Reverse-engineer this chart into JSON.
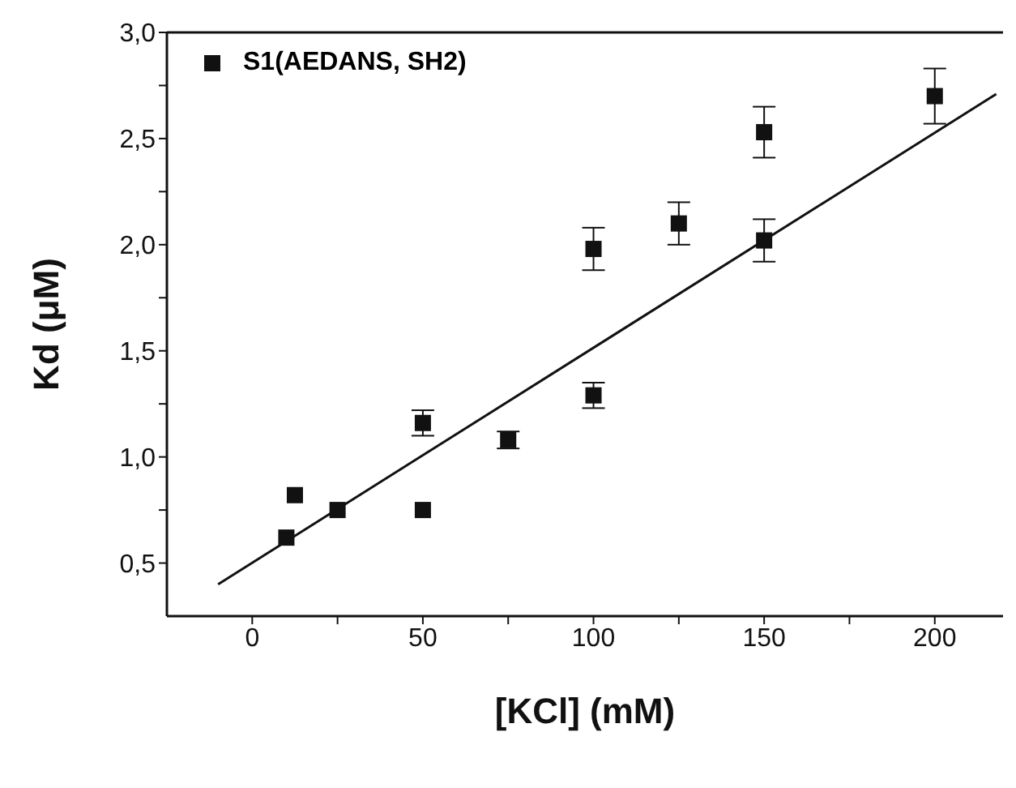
{
  "chart_data": {
    "type": "scatter",
    "xlabel": "[KCl] (mM)",
    "ylabel": "Kd (μM)",
    "xlim": [
      -25,
      220
    ],
    "ylim": [
      0.25,
      3.0
    ],
    "xticks": [
      0,
      {
        "value": 25,
        "label": null
      },
      50,
      {
        "value": 75,
        "label": null
      },
      100,
      {
        "value": 125,
        "label": null
      },
      150,
      {
        "value": 175,
        "label": null
      },
      200
    ],
    "yticks": [
      {
        "value": 0.5,
        "label": "0,5"
      },
      {
        "value": 0.75,
        "label": null
      },
      {
        "value": 1.0,
        "label": "1,0"
      },
      {
        "value": 1.25,
        "label": null
      },
      {
        "value": 1.5,
        "label": "1,5"
      },
      {
        "value": 1.75,
        "label": null
      },
      {
        "value": 2.0,
        "label": "2,0"
      },
      {
        "value": 2.25,
        "label": null
      },
      {
        "value": 2.5,
        "label": "2,5"
      },
      {
        "value": 2.75,
        "label": null
      },
      {
        "value": 3.0,
        "label": "3,0"
      }
    ],
    "grid": false,
    "legend": "top left",
    "marker": "square",
    "series": [
      {
        "name": "S1(AEDANS, SH2)",
        "color": "#111111",
        "x": [
          10,
          12.5,
          25,
          50,
          50,
          75,
          100,
          100,
          125,
          150,
          150,
          200
        ],
        "values": [
          0.62,
          0.82,
          0.75,
          0.75,
          1.16,
          1.08,
          1.98,
          1.29,
          2.1,
          2.53,
          2.02,
          2.7
        ],
        "errors": [
          null,
          null,
          null,
          null,
          0.06,
          0.04,
          0.1,
          0.06,
          0.1,
          0.12,
          0.1,
          0.13
        ]
      },
      {
        "type": "line",
        "color": "#111111",
        "marker": "none",
        "line_style": "solid",
        "x": [
          -10,
          218
        ],
        "values": [
          0.4,
          2.71
        ]
      }
    ]
  }
}
